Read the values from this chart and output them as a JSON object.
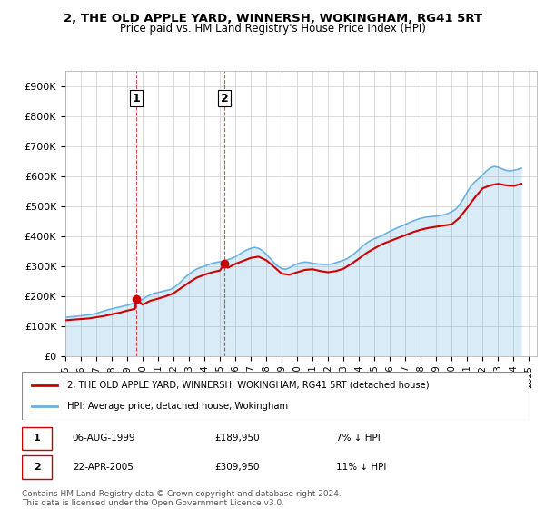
{
  "title": "2, THE OLD APPLE YARD, WINNERSH, WOKINGHAM, RG41 5RT",
  "subtitle": "Price paid vs. HM Land Registry's House Price Index (HPI)",
  "ylabel_ticks": [
    "£0",
    "£100K",
    "£200K",
    "£300K",
    "£400K",
    "£500K",
    "£600K",
    "£700K",
    "£800K",
    "£900K"
  ],
  "ytick_values": [
    0,
    100000,
    200000,
    300000,
    400000,
    500000,
    600000,
    700000,
    800000,
    900000
  ],
  "ylim": [
    0,
    950000
  ],
  "xlim_start": 1995.0,
  "xlim_end": 2025.5,
  "hpi_color": "#6ab0e0",
  "price_color": "#cc0000",
  "sale1_date": "06-AUG-1999",
  "sale1_price": "£189,950",
  "sale1_hpi": "7% ↓ HPI",
  "sale1_year": 1999.6,
  "sale1_value": 189950,
  "sale2_date": "22-APR-2005",
  "sale2_price": "£309,950",
  "sale2_hpi": "11% ↓ HPI",
  "sale2_year": 2005.3,
  "sale2_value": 309950,
  "legend_line1": "2, THE OLD APPLE YARD, WINNERSH, WOKINGHAM, RG41 5RT (detached house)",
  "legend_line2": "HPI: Average price, detached house, Wokingham",
  "footnote": "Contains HM Land Registry data © Crown copyright and database right 2024.\nThis data is licensed under the Open Government Licence v3.0.",
  "hpi_years": [
    1995.0,
    1995.25,
    1995.5,
    1995.75,
    1996.0,
    1996.25,
    1996.5,
    1996.75,
    1997.0,
    1997.25,
    1997.5,
    1997.75,
    1998.0,
    1998.25,
    1998.5,
    1998.75,
    1999.0,
    1999.25,
    1999.5,
    1999.75,
    2000.0,
    2000.25,
    2000.5,
    2000.75,
    2001.0,
    2001.25,
    2001.5,
    2001.75,
    2002.0,
    2002.25,
    2002.5,
    2002.75,
    2003.0,
    2003.25,
    2003.5,
    2003.75,
    2004.0,
    2004.25,
    2004.5,
    2004.75,
    2005.0,
    2005.25,
    2005.5,
    2005.75,
    2006.0,
    2006.25,
    2006.5,
    2006.75,
    2007.0,
    2007.25,
    2007.5,
    2007.75,
    2008.0,
    2008.25,
    2008.5,
    2008.75,
    2009.0,
    2009.25,
    2009.5,
    2009.75,
    2010.0,
    2010.25,
    2010.5,
    2010.75,
    2011.0,
    2011.25,
    2011.5,
    2011.75,
    2012.0,
    2012.25,
    2012.5,
    2012.75,
    2013.0,
    2013.25,
    2013.5,
    2013.75,
    2014.0,
    2014.25,
    2014.5,
    2014.75,
    2015.0,
    2015.25,
    2015.5,
    2015.75,
    2016.0,
    2016.25,
    2016.5,
    2016.75,
    2017.0,
    2017.25,
    2017.5,
    2017.75,
    2018.0,
    2018.25,
    2018.5,
    2018.75,
    2019.0,
    2019.25,
    2019.5,
    2019.75,
    2020.0,
    2020.25,
    2020.5,
    2020.75,
    2021.0,
    2021.25,
    2021.5,
    2021.75,
    2022.0,
    2022.25,
    2022.5,
    2022.75,
    2023.0,
    2023.25,
    2023.5,
    2023.75,
    2024.0,
    2024.25,
    2024.5
  ],
  "hpi_values": [
    130000,
    131000,
    132000,
    133500,
    135000,
    136500,
    138000,
    140000,
    143000,
    147000,
    151000,
    155000,
    158000,
    161000,
    164000,
    167000,
    170000,
    174000,
    178000,
    183000,
    190000,
    198000,
    205000,
    210000,
    213000,
    216000,
    219000,
    222000,
    228000,
    238000,
    250000,
    263000,
    274000,
    283000,
    291000,
    296000,
    300000,
    305000,
    310000,
    313000,
    315000,
    318000,
    322000,
    326000,
    332000,
    340000,
    348000,
    355000,
    360000,
    363000,
    360000,
    352000,
    340000,
    326000,
    312000,
    300000,
    292000,
    290000,
    295000,
    302000,
    308000,
    312000,
    314000,
    313000,
    310000,
    308000,
    307000,
    306000,
    306000,
    308000,
    312000,
    316000,
    320000,
    326000,
    335000,
    345000,
    356000,
    368000,
    378000,
    386000,
    392000,
    397000,
    403000,
    410000,
    417000,
    423000,
    429000,
    434000,
    440000,
    446000,
    451000,
    456000,
    460000,
    463000,
    465000,
    466000,
    467000,
    469000,
    472000,
    476000,
    482000,
    490000,
    505000,
    525000,
    548000,
    568000,
    582000,
    593000,
    605000,
    618000,
    628000,
    633000,
    630000,
    625000,
    620000,
    618000,
    620000,
    623000,
    627000
  ],
  "price_years": [
    1995.0,
    1995.5,
    1996.0,
    1996.5,
    1997.0,
    1997.5,
    1998.0,
    1998.5,
    1999.0,
    1999.5,
    1999.6,
    2000.0,
    2000.5,
    2001.0,
    2001.5,
    2002.0,
    2002.5,
    2003.0,
    2003.5,
    2004.0,
    2004.5,
    2005.0,
    2005.3,
    2005.5,
    2006.0,
    2006.5,
    2007.0,
    2007.5,
    2008.0,
    2008.5,
    2009.0,
    2009.5,
    2010.0,
    2010.5,
    2011.0,
    2011.5,
    2012.0,
    2012.5,
    2013.0,
    2013.5,
    2014.0,
    2014.5,
    2015.0,
    2015.5,
    2016.0,
    2016.5,
    2017.0,
    2017.5,
    2018.0,
    2018.5,
    2019.0,
    2019.5,
    2020.0,
    2020.5,
    2021.0,
    2021.5,
    2022.0,
    2022.5,
    2023.0,
    2023.5,
    2024.0,
    2024.5
  ],
  "price_values": [
    120000,
    122000,
    124000,
    126000,
    130000,
    134000,
    140000,
    145000,
    152000,
    158000,
    189950,
    172000,
    185000,
    192000,
    200000,
    210000,
    228000,
    246000,
    262000,
    272000,
    280000,
    286000,
    309950,
    295000,
    308000,
    318000,
    328000,
    332000,
    320000,
    298000,
    275000,
    272000,
    280000,
    288000,
    290000,
    284000,
    280000,
    284000,
    292000,
    308000,
    326000,
    345000,
    360000,
    374000,
    384000,
    394000,
    404000,
    414000,
    422000,
    428000,
    432000,
    436000,
    440000,
    462000,
    495000,
    530000,
    560000,
    570000,
    575000,
    570000,
    568000,
    575000
  ]
}
